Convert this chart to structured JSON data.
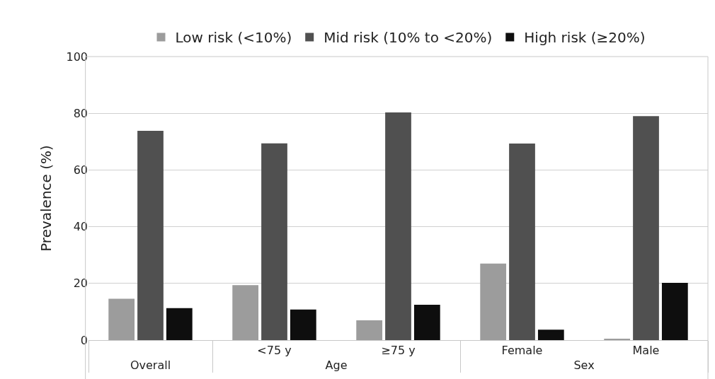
{
  "chart_data": {
    "type": "bar",
    "ylabel": "Prevalence (%)",
    "categories": [
      "Overall",
      "<75 y",
      "≥75 y",
      "Female",
      "Male"
    ],
    "annotations": [
      "Age",
      "Sex"
    ],
    "series": [
      {
        "name": "Low risk (<10%)",
        "color": "#9c9c9c",
        "values": [
          14.6,
          19.4,
          7.0,
          27.0,
          0.5
        ]
      },
      {
        "name": "Mid risk (10% to <20%)",
        "color": "#505050",
        "values": [
          73.8,
          69.4,
          80.3,
          69.3,
          79.0
        ]
      },
      {
        "name": "High risk (≥20%)",
        "color": "#0e0e0e",
        "values": [
          11.3,
          10.8,
          12.5,
          3.7,
          20.2
        ]
      }
    ],
    "ylim": [
      0,
      100
    ],
    "yticks": [
      0,
      20,
      40,
      60,
      80,
      100
    ],
    "grid": "y",
    "legend": "top"
  }
}
